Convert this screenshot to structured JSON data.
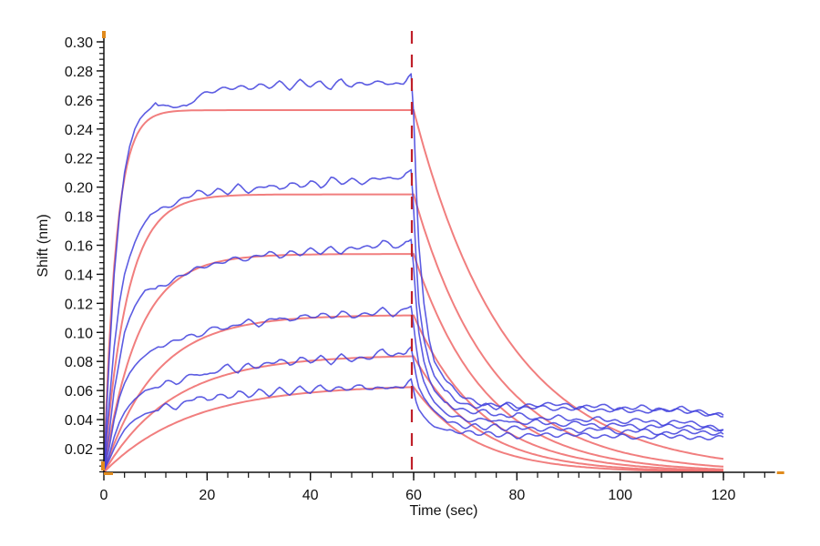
{
  "chart_data": {
    "type": "line",
    "title": "",
    "xlabel": "Time (sec)",
    "ylabel": "Shift (nm)",
    "xlim": [
      0,
      130
    ],
    "ylim": [
      0.0037,
      0.3
    ],
    "xticks": [
      0,
      20,
      40,
      60,
      80,
      100,
      120
    ],
    "xtick_labels": [
      "0",
      "20",
      "40",
      "60",
      "80",
      "100",
      "120"
    ],
    "yticks": [
      0.02,
      0.04,
      0.06,
      0.08,
      0.1,
      0.12,
      0.14,
      0.16,
      0.18,
      0.2,
      0.22,
      0.24,
      0.26,
      0.28,
      0.3
    ],
    "ytick_labels": [
      "0.02",
      "0.04",
      "0.06",
      "0.08",
      "0.10",
      "0.12",
      "0.14",
      "0.16",
      "0.18",
      "0.20",
      "0.22",
      "0.24",
      "0.26",
      "0.28",
      "0.30"
    ],
    "grid": false,
    "legend": "none",
    "annotations": [
      {
        "type": "vertical-dashed-line",
        "x": 60,
        "color": "#c0202a"
      }
    ],
    "colors": {
      "data": "#4040dd",
      "fit": "#f07070",
      "marker": "#e08a1c",
      "axis": "#111111"
    },
    "fit_series": [
      {
        "name": "fit-1",
        "plateau": 0.253,
        "kon_obs": 0.42,
        "koff": 0.055
      },
      {
        "name": "fit-2",
        "plateau": 0.195,
        "kon_obs": 0.22,
        "koff": 0.065
      },
      {
        "name": "fit-3",
        "plateau": 0.154,
        "kon_obs": 0.15,
        "koff": 0.072
      },
      {
        "name": "fit-4",
        "plateau": 0.112,
        "kon_obs": 0.1,
        "koff": 0.075
      },
      {
        "name": "fit-5",
        "plateau": 0.0845,
        "kon_obs": 0.075,
        "koff": 0.08
      },
      {
        "name": "fit-6",
        "plateau": 0.064,
        "kon_obs": 0.06,
        "koff": 0.085
      }
    ],
    "fit_baseline": 0.0037,
    "data_series": [
      {
        "name": "data-1",
        "x": [
          0,
          1,
          2,
          3,
          4,
          5,
          6,
          7,
          8,
          9,
          10,
          12,
          14,
          16,
          18,
          20,
          22,
          24,
          26,
          28,
          30,
          32,
          34,
          36,
          38,
          40,
          42,
          44,
          46,
          48,
          50,
          52,
          54,
          56,
          58,
          59.5,
          60,
          60.5,
          61,
          62,
          63,
          64,
          66,
          68,
          70,
          72,
          74,
          76,
          78,
          80,
          84,
          88,
          92,
          96,
          100,
          104,
          108,
          112,
          116,
          120
        ],
        "y": [
          0.005,
          0.08,
          0.14,
          0.18,
          0.21,
          0.228,
          0.24,
          0.247,
          0.251,
          0.254,
          0.258,
          0.255,
          0.256,
          0.255,
          0.262,
          0.265,
          0.267,
          0.268,
          0.269,
          0.268,
          0.27,
          0.269,
          0.272,
          0.268,
          0.273,
          0.27,
          0.272,
          0.268,
          0.274,
          0.269,
          0.272,
          0.271,
          0.273,
          0.27,
          0.272,
          0.278,
          0.25,
          0.2,
          0.16,
          0.12,
          0.095,
          0.08,
          0.068,
          0.06,
          0.055,
          0.052,
          0.05,
          0.05,
          0.051,
          0.049,
          0.05,
          0.051,
          0.048,
          0.05,
          0.047,
          0.049,
          0.046,
          0.048,
          0.045,
          0.043
        ]
      },
      {
        "name": "data-2",
        "x": [
          0,
          1,
          2,
          3,
          4,
          5,
          6,
          7,
          8,
          9,
          10,
          12,
          14,
          16,
          18,
          20,
          22,
          24,
          26,
          28,
          30,
          32,
          34,
          36,
          38,
          40,
          42,
          44,
          46,
          48,
          50,
          52,
          54,
          56,
          58,
          59.5,
          60,
          60.5,
          61,
          62,
          63,
          64,
          66,
          68,
          70,
          72,
          74,
          76,
          78,
          80,
          84,
          88,
          92,
          96,
          100,
          104,
          108,
          112,
          116,
          120
        ],
        "y": [
          0.005,
          0.05,
          0.09,
          0.12,
          0.14,
          0.152,
          0.162,
          0.17,
          0.176,
          0.181,
          0.183,
          0.186,
          0.189,
          0.193,
          0.197,
          0.195,
          0.198,
          0.196,
          0.201,
          0.197,
          0.199,
          0.202,
          0.198,
          0.203,
          0.2,
          0.204,
          0.2,
          0.206,
          0.203,
          0.205,
          0.203,
          0.205,
          0.207,
          0.205,
          0.208,
          0.212,
          0.185,
          0.15,
          0.12,
          0.095,
          0.08,
          0.07,
          0.06,
          0.054,
          0.05,
          0.049,
          0.05,
          0.048,
          0.05,
          0.047,
          0.049,
          0.047,
          0.048,
          0.046,
          0.047,
          0.045,
          0.047,
          0.046,
          0.044,
          0.042
        ]
      },
      {
        "name": "data-3",
        "x": [
          0,
          1,
          2,
          3,
          4,
          5,
          6,
          7,
          8,
          9,
          10,
          12,
          14,
          16,
          18,
          20,
          22,
          24,
          26,
          28,
          30,
          32,
          34,
          36,
          38,
          40,
          42,
          44,
          46,
          48,
          50,
          52,
          54,
          56,
          58,
          59.5,
          60,
          60.5,
          61,
          62,
          63,
          64,
          66,
          68,
          70,
          72,
          74,
          76,
          78,
          80,
          84,
          88,
          92,
          96,
          100,
          104,
          108,
          112,
          116,
          120
        ],
        "y": [
          0.005,
          0.03,
          0.06,
          0.08,
          0.1,
          0.11,
          0.118,
          0.124,
          0.129,
          0.13,
          0.13,
          0.133,
          0.137,
          0.141,
          0.144,
          0.146,
          0.147,
          0.15,
          0.151,
          0.15,
          0.153,
          0.155,
          0.152,
          0.155,
          0.154,
          0.157,
          0.155,
          0.158,
          0.155,
          0.158,
          0.159,
          0.158,
          0.163,
          0.159,
          0.16,
          0.164,
          0.145,
          0.12,
          0.1,
          0.08,
          0.068,
          0.06,
          0.052,
          0.048,
          0.046,
          0.045,
          0.046,
          0.043,
          0.042,
          0.044,
          0.04,
          0.042,
          0.039,
          0.041,
          0.038,
          0.04,
          0.037,
          0.039,
          0.036,
          0.033
        ]
      },
      {
        "name": "data-4",
        "x": [
          0,
          1,
          2,
          3,
          4,
          5,
          6,
          7,
          8,
          9,
          10,
          12,
          14,
          16,
          18,
          20,
          22,
          24,
          26,
          28,
          30,
          32,
          34,
          36,
          38,
          40,
          42,
          44,
          46,
          48,
          50,
          52,
          54,
          56,
          58,
          59.5,
          60,
          60.5,
          61,
          62,
          63,
          64,
          66,
          68,
          70,
          72,
          74,
          76,
          78,
          80,
          84,
          88,
          92,
          96,
          100,
          104,
          108,
          112,
          116,
          120
        ],
        "y": [
          0.005,
          0.02,
          0.04,
          0.055,
          0.065,
          0.072,
          0.077,
          0.081,
          0.084,
          0.087,
          0.089,
          0.092,
          0.094,
          0.098,
          0.097,
          0.101,
          0.104,
          0.102,
          0.106,
          0.108,
          0.105,
          0.108,
          0.111,
          0.107,
          0.112,
          0.11,
          0.113,
          0.11,
          0.114,
          0.111,
          0.112,
          0.113,
          0.116,
          0.112,
          0.115,
          0.118,
          0.105,
          0.09,
          0.078,
          0.066,
          0.058,
          0.052,
          0.045,
          0.042,
          0.04,
          0.039,
          0.041,
          0.038,
          0.04,
          0.037,
          0.039,
          0.036,
          0.038,
          0.035,
          0.037,
          0.034,
          0.036,
          0.035,
          0.034,
          0.033
        ]
      },
      {
        "name": "data-5",
        "x": [
          0,
          1,
          2,
          3,
          4,
          5,
          6,
          7,
          8,
          9,
          10,
          12,
          14,
          16,
          18,
          20,
          22,
          24,
          26,
          28,
          30,
          32,
          34,
          36,
          38,
          40,
          42,
          44,
          46,
          48,
          50,
          52,
          54,
          56,
          58,
          59.5,
          60,
          60.5,
          61,
          62,
          63,
          64,
          66,
          68,
          70,
          72,
          74,
          76,
          78,
          80,
          84,
          88,
          92,
          96,
          100,
          104,
          108,
          112,
          116,
          120
        ],
        "y": [
          0.005,
          0.015,
          0.028,
          0.038,
          0.045,
          0.05,
          0.054,
          0.057,
          0.06,
          0.061,
          0.062,
          0.066,
          0.065,
          0.069,
          0.072,
          0.07,
          0.074,
          0.077,
          0.073,
          0.078,
          0.076,
          0.079,
          0.081,
          0.078,
          0.082,
          0.08,
          0.083,
          0.079,
          0.084,
          0.081,
          0.082,
          0.083,
          0.088,
          0.084,
          0.085,
          0.09,
          0.08,
          0.07,
          0.062,
          0.055,
          0.05,
          0.046,
          0.04,
          0.037,
          0.035,
          0.036,
          0.034,
          0.036,
          0.033,
          0.035,
          0.033,
          0.034,
          0.032,
          0.034,
          0.031,
          0.033,
          0.03,
          0.032,
          0.031,
          0.03
        ]
      },
      {
        "name": "data-6",
        "x": [
          0,
          1,
          2,
          3,
          4,
          5,
          6,
          7,
          8,
          9,
          10,
          12,
          14,
          16,
          18,
          20,
          22,
          24,
          26,
          28,
          30,
          32,
          34,
          36,
          38,
          40,
          42,
          44,
          46,
          48,
          50,
          52,
          54,
          56,
          58,
          59.5,
          60,
          60.5,
          61,
          62,
          63,
          64,
          66,
          68,
          70,
          72,
          74,
          76,
          78,
          80,
          84,
          88,
          92,
          96,
          100,
          104,
          108,
          112,
          116,
          120
        ],
        "y": [
          0.005,
          0.012,
          0.02,
          0.027,
          0.033,
          0.037,
          0.04,
          0.042,
          0.044,
          0.045,
          0.046,
          0.05,
          0.048,
          0.052,
          0.056,
          0.053,
          0.057,
          0.055,
          0.059,
          0.056,
          0.06,
          0.057,
          0.061,
          0.058,
          0.062,
          0.059,
          0.063,
          0.06,
          0.062,
          0.061,
          0.064,
          0.06,
          0.063,
          0.061,
          0.063,
          0.068,
          0.06,
          0.052,
          0.047,
          0.042,
          0.038,
          0.035,
          0.033,
          0.031,
          0.032,
          0.03,
          0.031,
          0.029,
          0.03,
          0.028,
          0.03,
          0.029,
          0.03,
          0.028,
          0.029,
          0.027,
          0.029,
          0.028,
          0.027,
          0.028
        ]
      }
    ]
  }
}
